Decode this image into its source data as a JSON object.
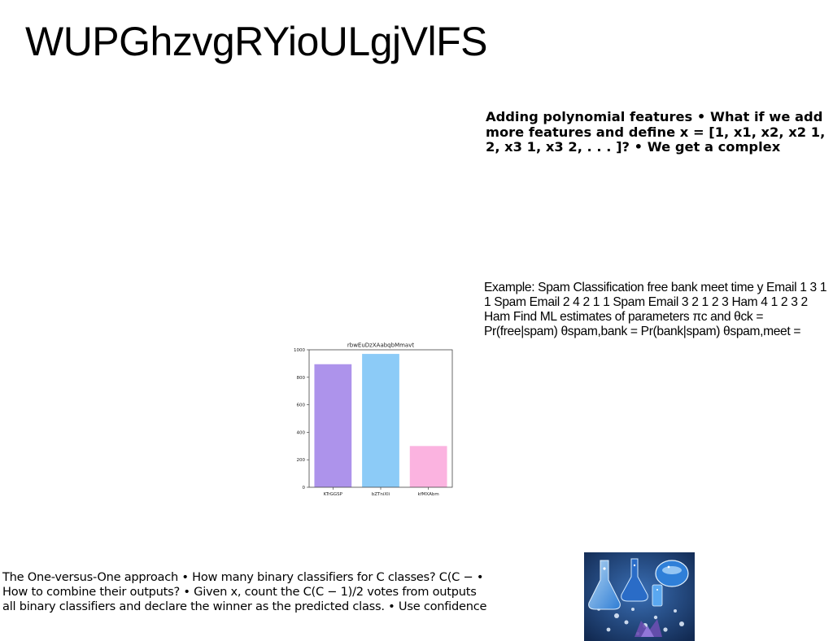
{
  "page": {
    "title": "WUPGhzvgRYioULgjVlFS"
  },
  "blocks": {
    "polynomial": "Adding polynomial features • What if we add more features and define x = [1, x1, x2, x2 1, 2, x3 1, x3 2, . . . ]? • We get a complex",
    "spam_example": "Example: Spam Classification free bank meet time y Email 1 3 1 1 Spam Email 2 4 2 1 1 Spam Email 3 2 1 2 3 Ham 4 1 2 3 2 Ham Find ML estimates of parameters πc and θck = Pr(free|spam) θspam,bank = Pr(bank|spam) θspam,meet =",
    "one_vs_one": "The One-versus-One approach • How many binary classifiers for C classes? C(C − • How to combine their outputs? • Given x, count the C(C − 1)/2 votes from outputs all binary classifiers and declare the winner as the predicted class. • Use confidence"
  },
  "chart_data": {
    "type": "bar",
    "title": "rbwEuDzXAabqbMmavt",
    "categories": [
      "KTrGGSP",
      "bZTniXli",
      "kfMXAbm"
    ],
    "values": [
      895,
      970,
      300
    ],
    "colors": [
      "#ad93eb",
      "#8ccbf7",
      "#fbb3e0"
    ],
    "ylim": [
      0,
      1000
    ],
    "yticks": [
      0,
      200,
      400,
      600,
      800,
      1000
    ],
    "xlabel": "",
    "ylabel": "",
    "grid": false
  },
  "photo": {
    "icon": "laboratory-glassware-photo",
    "colors": {
      "background": "#1d3f7a",
      "glass": "#2f7fd8",
      "highlight": "#bfe3ff",
      "accent": "#6a4fb0"
    }
  }
}
